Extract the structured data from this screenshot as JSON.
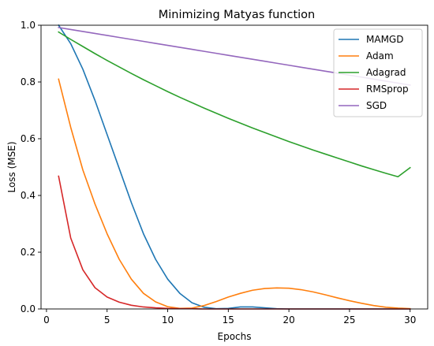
{
  "colors": {
    "MAMGD": "#1f77b4",
    "Adam": "#ff7f0e",
    "Adagrad": "#2ca02c",
    "RMSprop": "#d62728",
    "SGD": "#9467bd"
  },
  "chart_data": {
    "type": "line",
    "title": "Minimizing Matyas function",
    "xlabel": "Epochs",
    "ylabel": "Loss (MSE)",
    "xlim": [
      -0.45,
      31.45
    ],
    "ylim": [
      0,
      1.0
    ],
    "xticks": [
      0,
      5,
      10,
      15,
      20,
      25,
      30
    ],
    "xtick_labels": [
      "0",
      "5",
      "10",
      "15",
      "20",
      "25",
      "30"
    ],
    "yticks": [
      0.0,
      0.2,
      0.4,
      0.6,
      0.8,
      1.0
    ],
    "ytick_labels": [
      "0.0",
      "0.2",
      "0.4",
      "0.6",
      "0.8",
      "1.0"
    ],
    "grid": false,
    "legend_position": "top-right",
    "x": [
      1,
      2,
      3,
      4,
      5,
      6,
      7,
      8,
      9,
      10,
      11,
      12,
      13,
      14,
      15,
      16,
      17,
      18,
      19,
      20,
      21,
      22,
      23,
      24,
      25,
      26,
      27,
      28,
      29,
      30
    ],
    "series": [
      {
        "name": "MAMGD",
        "values": [
          1.0,
          0.935,
          0.845,
          0.735,
          0.615,
          0.495,
          0.375,
          0.265,
          0.175,
          0.105,
          0.055,
          0.022,
          0.006,
          0.001,
          0.002,
          0.007,
          0.007,
          0.004,
          0.001,
          0.0,
          0.0,
          0.0,
          0.0,
          0.0,
          0.0,
          0.0,
          0.0,
          0.0,
          0.0,
          0.0
        ]
      },
      {
        "name": "Adam",
        "values": [
          0.81,
          0.64,
          0.49,
          0.37,
          0.265,
          0.175,
          0.105,
          0.055,
          0.025,
          0.008,
          0.002,
          0.003,
          0.012,
          0.026,
          0.042,
          0.055,
          0.066,
          0.072,
          0.074,
          0.073,
          0.068,
          0.06,
          0.05,
          0.039,
          0.029,
          0.02,
          0.012,
          0.006,
          0.003,
          0.001
        ]
      },
      {
        "name": "Adagrad",
        "values": [
          0.976,
          0.95,
          0.925,
          0.9,
          0.876,
          0.853,
          0.83,
          0.808,
          0.787,
          0.766,
          0.746,
          0.727,
          0.708,
          0.69,
          0.672,
          0.655,
          0.638,
          0.622,
          0.606,
          0.59,
          0.575,
          0.56,
          0.546,
          0.532,
          0.518,
          0.504,
          0.491,
          0.478,
          0.466,
          0.498
        ]
      },
      {
        "name": "RMSprop",
        "values": [
          0.468,
          0.25,
          0.138,
          0.075,
          0.042,
          0.024,
          0.013,
          0.007,
          0.004,
          0.002,
          0.001,
          0.001,
          0.0,
          0.0,
          0.0,
          0.0,
          0.0,
          0.0,
          0.0,
          0.0,
          0.0,
          0.0,
          0.0,
          0.0,
          0.0,
          0.0,
          0.0,
          0.0,
          0.0,
          0.0
        ]
      },
      {
        "name": "SGD",
        "values": [
          0.992,
          0.985,
          0.978,
          0.971,
          0.964,
          0.957,
          0.95,
          0.943,
          0.936,
          0.929,
          0.922,
          0.915,
          0.908,
          0.901,
          0.894,
          0.887,
          0.88,
          0.873,
          0.866,
          0.859,
          0.852,
          0.845,
          0.838,
          0.831,
          0.824,
          0.817,
          0.81,
          0.803,
          0.796,
          0.789
        ]
      }
    ]
  }
}
